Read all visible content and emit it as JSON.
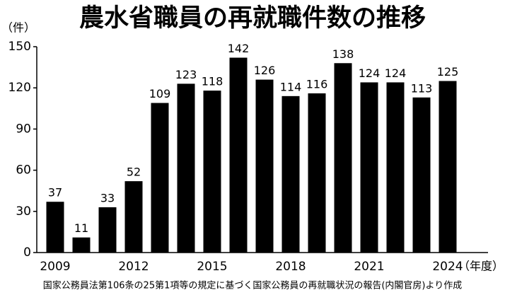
{
  "chart_data": {
    "type": "bar",
    "title": "農水省職員の再就職件数の推移",
    "y_label": "（件）",
    "x_label": "（年度）",
    "source": "国家公務員法第106条の25第1項等の規定に基づく国家公務員の再就職状況の報告(内閣官房)より作成",
    "categories": [
      "2009",
      null,
      null,
      "2012",
      null,
      null,
      "2015",
      null,
      null,
      "2018",
      null,
      null,
      "2021",
      null,
      null,
      "2024"
    ],
    "values": [
      37,
      11,
      33,
      52,
      109,
      123,
      118,
      142,
      126,
      114,
      116,
      138,
      124,
      124,
      113,
      125
    ],
    "color": "#000000",
    "ylim": [
      0,
      150
    ],
    "yticks": [
      0,
      30,
      60,
      90,
      120,
      150
    ],
    "grid": false
  }
}
